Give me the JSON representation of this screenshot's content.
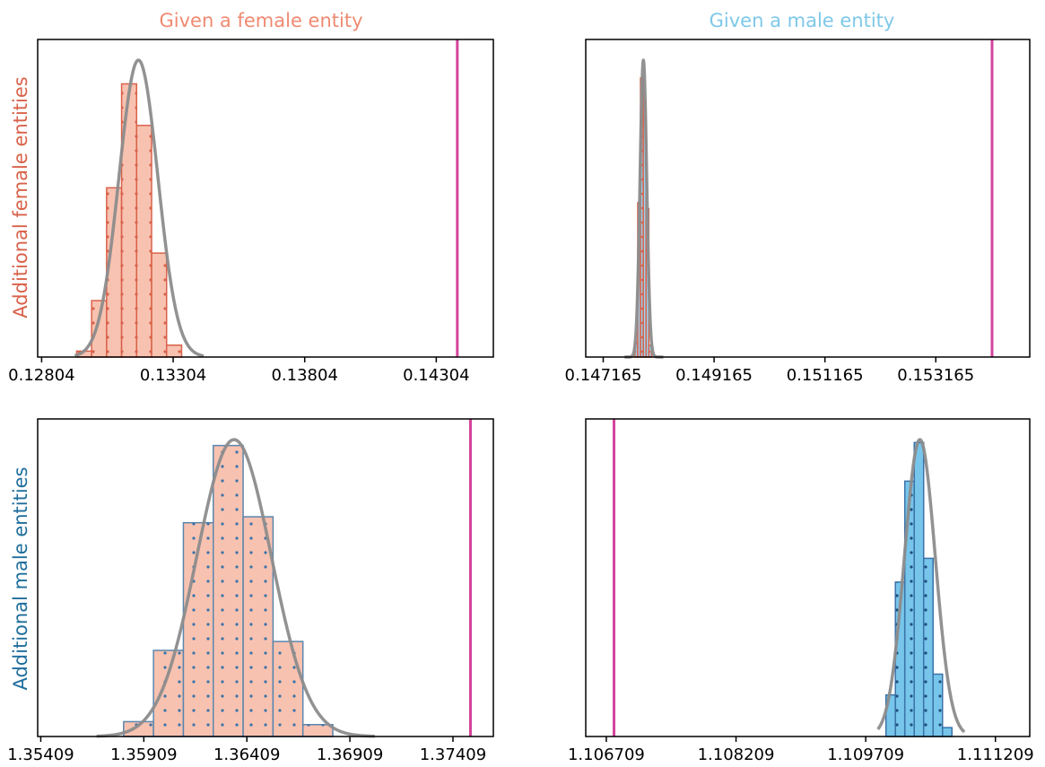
{
  "figure": {
    "column_titles": [
      "Given a female entity",
      "Given a male entity"
    ],
    "row_labels": [
      "Additional female entities",
      "Additional male entities"
    ],
    "colors": {
      "female_title": "#f08a72",
      "male_title": "#7ec8e8",
      "female_row_label": "#d9624a",
      "male_row_label": "#1f6e9c",
      "observed_line": "#d4449c",
      "kde_line": "#8c8c8c"
    }
  },
  "chart_data": [
    {
      "type": "bar",
      "panel": "top-left",
      "column_title": "Given a female entity",
      "row_label": "Additional female entities",
      "xlim": [
        0.12789,
        0.14521
      ],
      "xticks": [
        0.12804,
        0.13304,
        0.13804,
        0.14304
      ],
      "xtick_labels": [
        "0.12804",
        "0.13304",
        "0.13804",
        "0.14304"
      ],
      "ylim": [
        0,
        1.0
      ],
      "bin_edges": [
        0.12937,
        0.12994,
        0.13051,
        0.13108,
        0.13165,
        0.13222,
        0.13279,
        0.13336
      ],
      "values": [
        0.02,
        0.19,
        0.57,
        0.92,
        0.78,
        0.35,
        0.04
      ],
      "kde": {
        "mean": 0.13172,
        "sd": 0.00074,
        "peak": 1.0,
        "range": [
          0.1293,
          0.1342
        ]
      },
      "observed_value": 0.14384,
      "bar_fill": "#f7b7a3",
      "bar_edge": "#d9624a",
      "dot_color": "#d9624a"
    },
    {
      "type": "bar",
      "panel": "top-right",
      "column_title": "Given a male entity",
      "row_label": "",
      "xlim": [
        0.14685,
        0.15486
      ],
      "xticks": [
        0.147165,
        0.149165,
        0.151165,
        0.153165
      ],
      "xtick_labels": [
        "0.147165",
        "0.149165",
        "0.151165",
        "0.153165"
      ],
      "ylim": [
        0,
        1.0
      ],
      "bin_edges": [
        0.147738,
        0.147788,
        0.147838,
        0.147888,
        0.147938,
        0.147988,
        0.148038
      ],
      "values": [
        0.05,
        0.52,
        0.94,
        0.86,
        0.5,
        0.04
      ],
      "kde": {
        "mean": 0.14789,
        "sd": 6e-05,
        "peak": 1.0,
        "range": [
          0.14755,
          0.14825
        ]
      },
      "observed_value": 0.15418,
      "bar_fill": "#89c9ea",
      "bar_edge": "#d9624a",
      "dot_color": "#d9624a"
    },
    {
      "type": "bar",
      "panel": "bottom-left",
      "column_title": "",
      "row_label": "Additional male entities",
      "xlim": [
        1.35394,
        1.37605
      ],
      "xticks": [
        1.35409,
        1.35909,
        1.36409,
        1.36909,
        1.37409
      ],
      "xtick_labels": [
        "1.35409",
        "1.35909",
        "1.36409",
        "1.36909",
        "1.37409"
      ],
      "ylim": [
        0,
        1.0
      ],
      "bin_edges": [
        1.35811,
        1.35956,
        1.36101,
        1.36246,
        1.36391,
        1.36536,
        1.36681,
        1.36826
      ],
      "values": [
        0.05,
        0.29,
        0.72,
        0.98,
        0.74,
        0.32,
        0.04
      ],
      "kde": {
        "mean": 1.36347,
        "sd": 0.00181,
        "peak": 1.0,
        "range": [
          1.3568,
          1.3703
        ]
      },
      "observed_value": 1.37494,
      "bar_fill": "#f7b7a3",
      "bar_edge": "#5a86ad",
      "dot_color": "#3a73a8"
    },
    {
      "type": "bar",
      "panel": "bottom-right",
      "column_title": "",
      "row_label": "",
      "xlim": [
        1.106471,
        1.111606
      ],
      "xticks": [
        1.106709,
        1.108209,
        1.109709,
        1.111209
      ],
      "xtick_labels": [
        "1.106709",
        "1.108209",
        "1.109709",
        "1.111209"
      ],
      "ylim": [
        0,
        1.0
      ],
      "bin_edges": [
        1.109943,
        1.110052,
        1.110161,
        1.11027,
        1.110379,
        1.110488,
        1.110597,
        1.110706
      ],
      "values": [
        0.14,
        0.52,
        0.86,
        0.99,
        0.6,
        0.21,
        0.03
      ],
      "kde": {
        "mean": 1.110335,
        "sd": 0.000178,
        "peak": 1.0,
        "range": [
          1.10985,
          1.11085
        ]
      },
      "observed_value": 1.106798,
      "bar_fill": "#5fbbe8",
      "bar_edge": "#3a73a8",
      "dot_color": "#1f4f7a"
    }
  ]
}
